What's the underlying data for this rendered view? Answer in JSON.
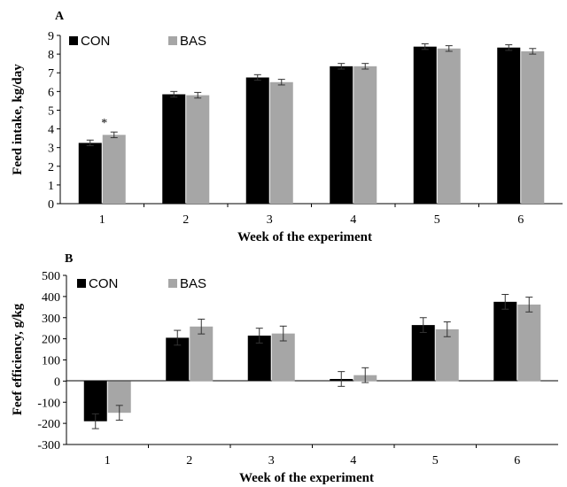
{
  "chart_data": [
    {
      "panel": "A",
      "type": "bar",
      "xlabel": "Week of the experiment",
      "ylabel": "Feed intake, kg/day",
      "categories": [
        "1",
        "2",
        "3",
        "4",
        "5",
        "6"
      ],
      "ylim": [
        0,
        9
      ],
      "yticks": [
        0,
        1,
        2,
        3,
        4,
        5,
        6,
        7,
        8,
        9
      ],
      "grid": false,
      "legend_position": "top-left",
      "series": [
        {
          "name": "CON",
          "color": "#000000",
          "values": [
            3.25,
            5.85,
            6.75,
            7.35,
            8.4,
            8.35
          ],
          "errors": [
            0.15,
            0.15,
            0.15,
            0.15,
            0.15,
            0.15
          ]
        },
        {
          "name": "BAS",
          "color": "#a6a6a6",
          "values": [
            3.68,
            5.8,
            6.5,
            7.35,
            8.3,
            8.15
          ],
          "errors": [
            0.15,
            0.15,
            0.15,
            0.15,
            0.15,
            0.15
          ]
        }
      ],
      "annotations": [
        {
          "text": "*",
          "category": "1",
          "series": "BAS"
        }
      ]
    },
    {
      "panel": "B",
      "type": "bar",
      "xlabel": "Week of the experiment",
      "ylabel": "Feef efficiency, g/kg",
      "categories": [
        "1",
        "2",
        "3",
        "4",
        "5",
        "6"
      ],
      "ylim": [
        -300,
        500
      ],
      "yticks": [
        -300,
        -200,
        -100,
        0,
        100,
        200,
        300,
        400,
        500
      ],
      "grid": false,
      "legend_position": "top-left",
      "series": [
        {
          "name": "CON",
          "color": "#000000",
          "values": [
            -190,
            205,
            215,
            10,
            265,
            375
          ],
          "errors": [
            35,
            35,
            35,
            35,
            35,
            35
          ]
        },
        {
          "name": "BAS",
          "color": "#a6a6a6",
          "values": [
            -150,
            258,
            225,
            28,
            245,
            362
          ],
          "errors": [
            35,
            35,
            35,
            35,
            35,
            35
          ]
        }
      ]
    }
  ]
}
